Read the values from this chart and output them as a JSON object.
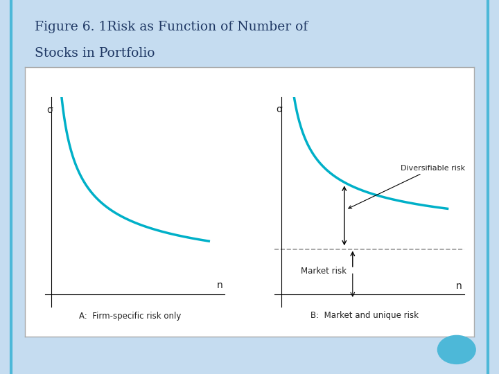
{
  "title_line1": "Figure 6. 1Risk as Function of Number of",
  "title_line2": "Stocks in Portfolio",
  "title_color": "#1F3864",
  "outer_bg": "#C5DCF0",
  "curve_color": "#00B0C8",
  "dashed_color": "#999999",
  "text_color": "#222222",
  "panel_a_label": "A:  Firm-specific risk only",
  "panel_b_label": "B:  Market and unique risk",
  "diversifiable_label": "Diversifiable risk",
  "market_risk_label": "Market risk",
  "sigma_label": "σ",
  "n_label": "n",
  "dot_color": "#4DB8D8",
  "box_edge_color": "#AAAAAA"
}
